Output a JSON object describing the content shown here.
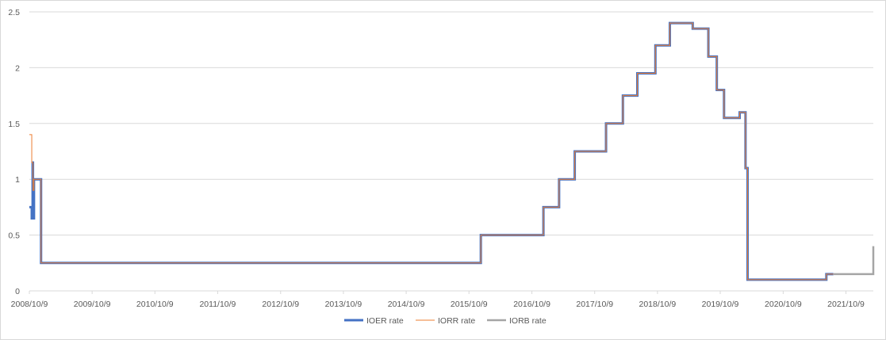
{
  "chart_data": {
    "type": "line",
    "title": "",
    "xlabel": "",
    "ylabel": "",
    "ylim": [
      0,
      2.5
    ],
    "yticks": [
      "0",
      "0.5",
      "1",
      "1.5",
      "2",
      "2.5"
    ],
    "xlim": [
      "2008-10-09",
      "2022-03-17"
    ],
    "xticks": [
      "2008/10/9",
      "2009/10/9",
      "2010/10/9",
      "2011/10/9",
      "2012/10/9",
      "2013/10/9",
      "2014/10/9",
      "2015/10/9",
      "2016/10/9",
      "2017/10/9",
      "2018/10/9",
      "2019/10/9",
      "2020/10/9",
      "2021/10/9"
    ],
    "grid": "horizontal",
    "legend_position": "bottom",
    "step": true,
    "series": [
      {
        "name": "IOER rate",
        "color": "#4472c4",
        "points": [
          [
            "2008-10-09",
            0.75
          ],
          [
            "2008-10-23",
            0.75
          ],
          [
            "2008-10-23",
            0.65
          ],
          [
            "2008-10-28",
            0.65
          ],
          [
            "2008-10-28",
            1.15
          ],
          [
            "2008-10-30",
            1.15
          ],
          [
            "2008-10-30",
            0.65
          ],
          [
            "2008-11-05",
            0.65
          ],
          [
            "2008-11-05",
            1.0
          ],
          [
            "2008-12-16",
            1.0
          ],
          [
            "2008-12-16",
            0.25
          ],
          [
            "2015-12-17",
            0.25
          ],
          [
            "2015-12-17",
            0.5
          ],
          [
            "2016-12-15",
            0.5
          ],
          [
            "2016-12-15",
            0.75
          ],
          [
            "2017-03-16",
            0.75
          ],
          [
            "2017-03-16",
            1.0
          ],
          [
            "2017-06-15",
            1.0
          ],
          [
            "2017-06-15",
            1.25
          ],
          [
            "2017-12-14",
            1.25
          ],
          [
            "2017-12-14",
            1.5
          ],
          [
            "2018-03-22",
            1.5
          ],
          [
            "2018-03-22",
            1.75
          ],
          [
            "2018-06-14",
            1.75
          ],
          [
            "2018-06-14",
            1.95
          ],
          [
            "2018-09-27",
            1.95
          ],
          [
            "2018-09-27",
            2.2
          ],
          [
            "2018-12-20",
            2.2
          ],
          [
            "2018-12-20",
            2.4
          ],
          [
            "2019-05-02",
            2.4
          ],
          [
            "2019-05-02",
            2.35
          ],
          [
            "2019-08-01",
            2.35
          ],
          [
            "2019-08-01",
            2.1
          ],
          [
            "2019-09-19",
            2.1
          ],
          [
            "2019-09-19",
            1.8
          ],
          [
            "2019-10-31",
            1.8
          ],
          [
            "2019-10-31",
            1.55
          ],
          [
            "2020-01-30",
            1.55
          ],
          [
            "2020-01-30",
            1.6
          ],
          [
            "2020-03-04",
            1.6
          ],
          [
            "2020-03-04",
            1.1
          ],
          [
            "2020-03-16",
            1.1
          ],
          [
            "2020-03-16",
            0.1
          ],
          [
            "2021-06-17",
            0.1
          ],
          [
            "2021-06-17",
            0.15
          ],
          [
            "2021-07-28",
            0.15
          ]
        ]
      },
      {
        "name": "IORR rate",
        "color": "#ed7d31",
        "points": [
          [
            "2008-10-09",
            1.4
          ],
          [
            "2008-10-23",
            1.4
          ],
          [
            "2008-10-23",
            1.15
          ],
          [
            "2008-10-30",
            1.15
          ],
          [
            "2008-10-30",
            0.9
          ],
          [
            "2008-11-05",
            0.9
          ],
          [
            "2008-11-05",
            1.0
          ],
          [
            "2008-12-16",
            1.0
          ],
          [
            "2008-12-16",
            0.25
          ],
          [
            "2015-12-17",
            0.25
          ],
          [
            "2015-12-17",
            0.5
          ],
          [
            "2016-12-15",
            0.5
          ],
          [
            "2016-12-15",
            0.75
          ],
          [
            "2017-03-16",
            0.75
          ],
          [
            "2017-03-16",
            1.0
          ],
          [
            "2017-06-15",
            1.0
          ],
          [
            "2017-06-15",
            1.25
          ],
          [
            "2017-12-14",
            1.25
          ],
          [
            "2017-12-14",
            1.5
          ],
          [
            "2018-03-22",
            1.5
          ],
          [
            "2018-03-22",
            1.75
          ],
          [
            "2018-06-14",
            1.75
          ],
          [
            "2018-06-14",
            1.95
          ],
          [
            "2018-09-27",
            1.95
          ],
          [
            "2018-09-27",
            2.2
          ],
          [
            "2018-12-20",
            2.2
          ],
          [
            "2018-12-20",
            2.4
          ],
          [
            "2019-05-02",
            2.4
          ],
          [
            "2019-05-02",
            2.35
          ],
          [
            "2019-08-01",
            2.35
          ],
          [
            "2019-08-01",
            2.1
          ],
          [
            "2019-09-19",
            2.1
          ],
          [
            "2019-09-19",
            1.8
          ],
          [
            "2019-10-31",
            1.8
          ],
          [
            "2019-10-31",
            1.55
          ],
          [
            "2020-01-30",
            1.55
          ],
          [
            "2020-01-30",
            1.6
          ],
          [
            "2020-03-04",
            1.6
          ],
          [
            "2020-03-04",
            1.1
          ],
          [
            "2020-03-16",
            1.1
          ],
          [
            "2020-03-16",
            0.1
          ],
          [
            "2021-06-17",
            0.1
          ],
          [
            "2021-06-17",
            0.15
          ],
          [
            "2021-07-28",
            0.15
          ]
        ]
      },
      {
        "name": "IORB rate",
        "color": "#a5a5a5",
        "points": [
          [
            "2021-07-29",
            0.15
          ],
          [
            "2022-03-17",
            0.15
          ],
          [
            "2022-03-17",
            0.4
          ]
        ]
      }
    ]
  }
}
